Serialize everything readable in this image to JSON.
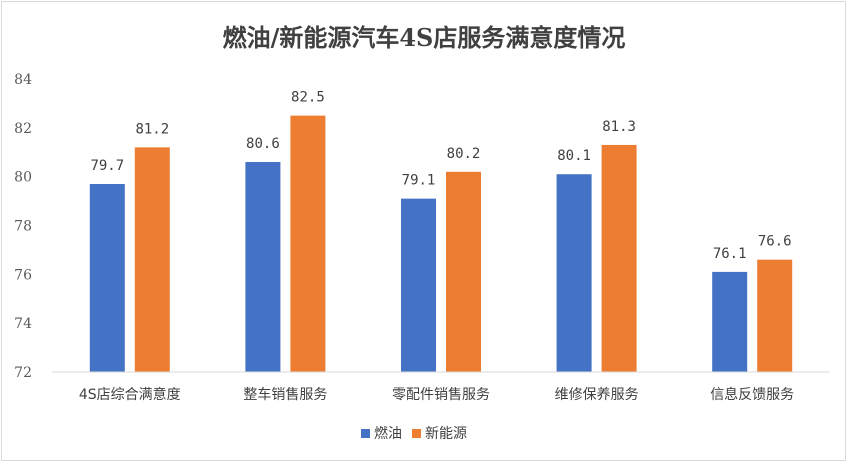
{
  "chart_data": {
    "type": "bar",
    "title": "燃油/新能源汽车4S店服务满意度情况",
    "categories": [
      "4S店综合满意度",
      "整车销售服务",
      "零配件销售服务",
      "维修保养服务",
      "信息反馈服务"
    ],
    "series": [
      {
        "name": "燃油",
        "color": "#4472c4",
        "values": [
          79.7,
          80.6,
          79.1,
          80.1,
          76.1
        ]
      },
      {
        "name": "新能源",
        "color": "#ed7d31",
        "values": [
          81.2,
          82.5,
          80.2,
          81.3,
          76.6
        ]
      }
    ],
    "ylim": [
      72,
      84
    ],
    "yticks": [
      72,
      74,
      76,
      78,
      80,
      82,
      84
    ],
    "xlabel": "",
    "ylabel": "",
    "grid": false,
    "legend": "bottom"
  }
}
